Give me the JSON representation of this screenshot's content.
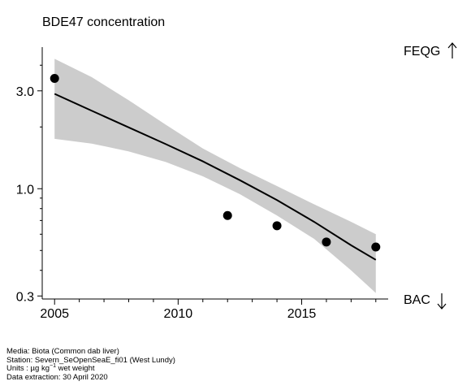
{
  "title": "BDE47 concentration",
  "thresholds": {
    "upper": "FEQG",
    "lower": "BAC"
  },
  "footer": {
    "media": "Media: Biota (Common dab liver)",
    "station": "Station: Severn_SeOpenSeaE_fi01 (West Lundy)",
    "units_prefix": "Units : µg kg",
    "units_exp": "−1",
    "units_suffix": " wet weight",
    "extraction": "Data extraction: 30 April 2020"
  },
  "chart_data": {
    "type": "scatter",
    "title": "BDE47 concentration",
    "xlabel": "",
    "ylabel": "",
    "y_scale": "log",
    "xlim": [
      2004.5,
      2018.5
    ],
    "ylim": [
      0.29,
      4.9
    ],
    "x_ticks": [
      2005,
      2010,
      2015
    ],
    "x_tick_labels": [
      "2005",
      "2010",
      "2015"
    ],
    "y_ticks": [
      0.3,
      1.0,
      3.0
    ],
    "y_tick_labels": [
      "0.3",
      "1.0",
      "3.0"
    ],
    "grid": false,
    "points": {
      "x": [
        2005,
        2012,
        2014,
        2016,
        2018
      ],
      "y": [
        3.45,
        0.74,
        0.66,
        0.55,
        0.52
      ]
    },
    "trend": {
      "x": [
        2005,
        2006.5,
        2008,
        2009.5,
        2011,
        2012.5,
        2014,
        2015.5,
        2017,
        2018
      ],
      "fit": [
        2.9,
        2.4,
        1.99,
        1.65,
        1.36,
        1.1,
        0.88,
        0.69,
        0.53,
        0.45
      ],
      "lower": [
        1.75,
        1.66,
        1.52,
        1.35,
        1.15,
        0.94,
        0.74,
        0.57,
        0.4,
        0.31
      ],
      "upper": [
        4.3,
        3.5,
        2.7,
        2.05,
        1.57,
        1.26,
        1.03,
        0.84,
        0.69,
        0.6
      ]
    }
  }
}
